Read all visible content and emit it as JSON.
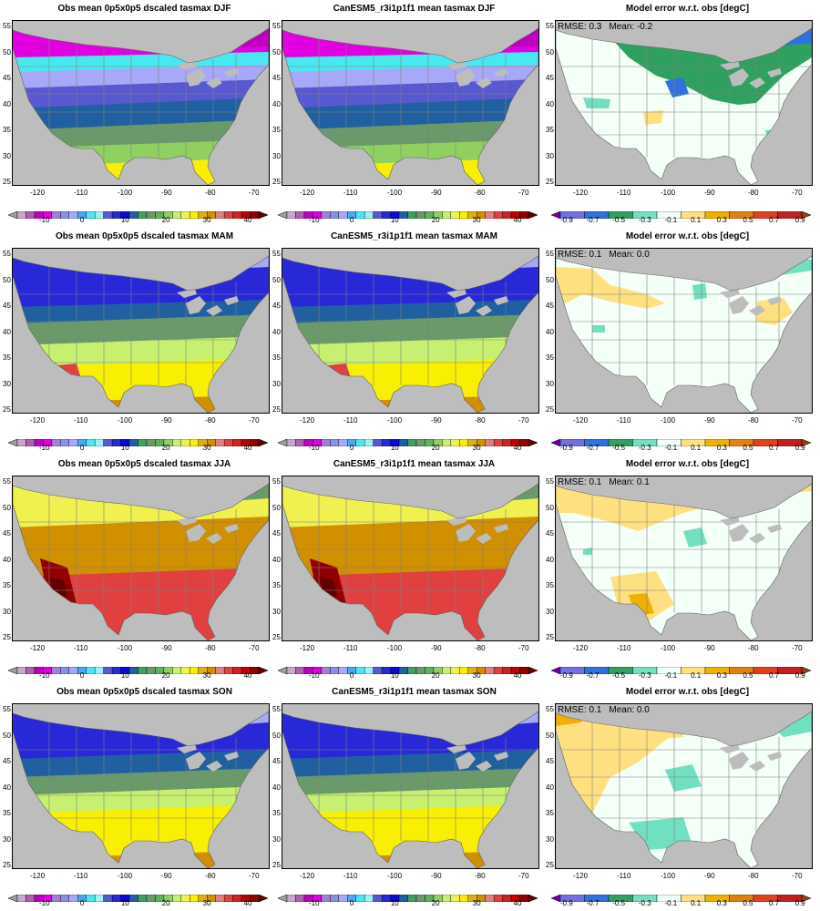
{
  "figure": {
    "rows": [
      {
        "season": "DJF",
        "rmse": "RMSE: 0.3",
        "mean": "Mean: -0.2"
      },
      {
        "season": "MAM",
        "rmse": "RMSE: 0.1",
        "mean": "Mean: 0.0"
      },
      {
        "season": "JJA",
        "rmse": "RMSE: 0.1",
        "mean": "Mean: 0.1"
      },
      {
        "season": "SON",
        "rmse": "RMSE: 0.1",
        "mean": "Mean: 0.0"
      }
    ],
    "titles": [
      [
        "Obs mean 0p5x0p5 dscaled tasmax DJF",
        "CanESM5_r3i1p1f1 mean tasmax DJF",
        "Model error w.r.t. obs [degC]"
      ],
      [
        "Obs mean 0p5x0p5 dscaled tasmax MAM",
        "CanESM5_r3i1p1f1 mean tasmax MAM",
        "Model error w.r.t. obs [degC]"
      ],
      [
        "Obs mean 0p5x0p5 dscaled tasmax JJA",
        "CanESM5_r3i1p1f1 mean tasmax JJA",
        "Model error w.r.t. obs [degC]"
      ],
      [
        "Obs mean 0p5x0p5 dscaled tasmax SON",
        "CanESM5_r3i1p1f1 mean tasmax SON",
        "Model error w.r.t. obs [degC]"
      ]
    ],
    "lon_ticks": [
      "-120",
      "-110",
      "-100",
      "-90",
      "-80",
      "-70"
    ],
    "lat_ticks": [
      "55",
      "50",
      "45",
      "40",
      "35",
      "30",
      "25"
    ],
    "temp_colorbar": {
      "labels": [
        "-10",
        "0",
        "10",
        "20",
        "30",
        "40"
      ],
      "colors": [
        "#9e9e9e",
        "#c8a8c8",
        "#b060b0",
        "#c000c0",
        "#e000e0",
        "#a080d8",
        "#8890e8",
        "#a8a8f8",
        "#48a8f0",
        "#48e8f0",
        "#a0f0f8",
        "#5858d0",
        "#2828d8",
        "#0a0ae0",
        "#2060a0",
        "#40a060",
        "#6a9a6a",
        "#60b060",
        "#90d060",
        "#c8f070",
        "#f0f050",
        "#f8f000",
        "#e0b010",
        "#d09000",
        "#e08080",
        "#e04040",
        "#d02020",
        "#c00000",
        "#900000",
        "#600000"
      ]
    },
    "err_colorbar": {
      "labels": [
        "-0.9",
        "-0.7",
        "-0.5",
        "-0.3",
        "-0.1",
        "0.1",
        "0.3",
        "0.5",
        "0.7",
        "0.9"
      ],
      "colors": [
        "#7000a0",
        "#7070e0",
        "#3070e0",
        "#30a060",
        "#70e0c0",
        "#f0fff8",
        "#ffe080",
        "#f0b000",
        "#e08010",
        "#e04020",
        "#c02020",
        "#8b4513"
      ]
    },
    "map_colors": {
      "background": "#bdbdbd",
      "land_neutral": "#f4fff8",
      "border_line": "#808080",
      "lake": "#bdbdbd"
    }
  }
}
